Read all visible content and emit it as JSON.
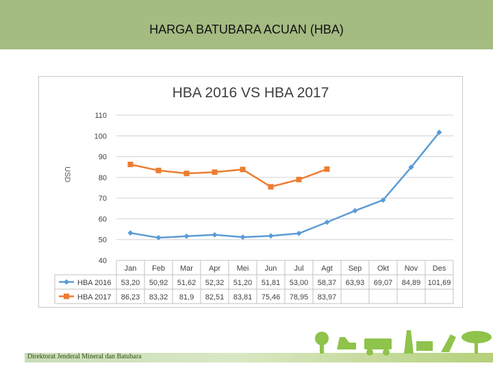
{
  "header": {
    "title": "HARGA BATUBARA ACUAN (HBA)"
  },
  "footer": {
    "text": "Direktorat Jenderal Mineral dan Batubara"
  },
  "colors": {
    "header_bg": "#a4bb82",
    "series_2016": "#5b9bd5",
    "series_2017": "#ed7d31",
    "grid": "#d0d0d0"
  },
  "chart_data": {
    "type": "line",
    "title": "HBA 2016 VS HBA 2017",
    "xlabel": "",
    "ylabel": "USD",
    "ylim": [
      40,
      110
    ],
    "yticks": [
      40,
      50,
      60,
      70,
      80,
      90,
      100,
      110
    ],
    "grid": true,
    "legend": "data-table",
    "categories": [
      "Jan",
      "Feb",
      "Mar",
      "Apr",
      "Mei",
      "Jun",
      "Jul",
      "Agt",
      "Sep",
      "Okt",
      "Nov",
      "Des"
    ],
    "series": [
      {
        "name": "HBA 2016",
        "values": [
          53.2,
          50.92,
          51.62,
          52.32,
          51.2,
          51.81,
          53.0,
          58.37,
          63.93,
          69.07,
          84.89,
          101.69
        ],
        "labels": [
          "53,20",
          "50,92",
          "51,62",
          "52,32",
          "51,20",
          "51,81",
          "53,00",
          "58,37",
          "63,93",
          "69,07",
          "84,89",
          "101,69"
        ]
      },
      {
        "name": "HBA 2017",
        "values": [
          86.23,
          83.32,
          81.9,
          82.51,
          83.81,
          75.46,
          78.95,
          83.97,
          null,
          null,
          null,
          null
        ],
        "labels": [
          "86,23",
          "83,32",
          "81,9",
          "82,51",
          "83,81",
          "75,46",
          "78,95",
          "83,97",
          "",
          "",
          "",
          ""
        ]
      }
    ]
  }
}
